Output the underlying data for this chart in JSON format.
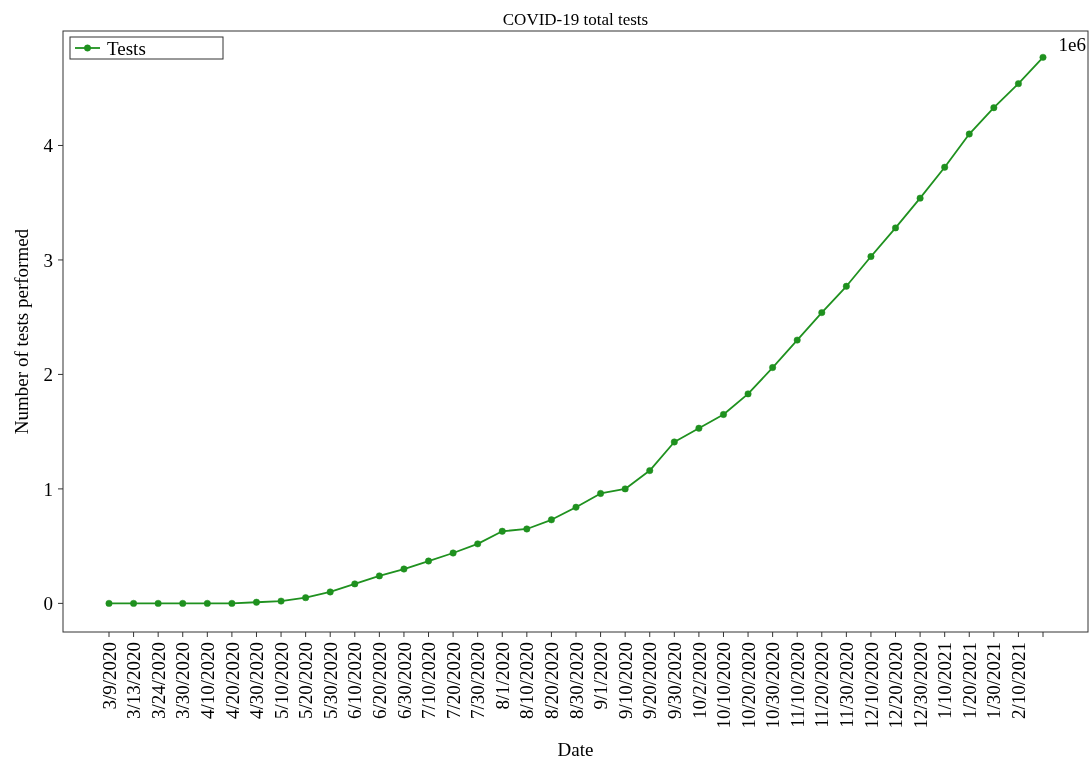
{
  "chart_data": {
    "type": "line",
    "title": "COVID-19 total tests",
    "xlabel": "Date",
    "ylabel": "Number of tests performed",
    "categories": [
      "3/9/2020",
      "3/13/2020",
      "3/24/2020",
      "3/30/2020",
      "4/10/2020",
      "4/20/2020",
      "4/30/2020",
      "5/10/2020",
      "5/20/2020",
      "5/30/2020",
      "6/10/2020",
      "6/20/2020",
      "6/30/2020",
      "7/10/2020",
      "7/20/2020",
      "7/30/2020",
      "8/1/2020",
      "8/10/2020",
      "8/20/2020",
      "8/30/2020",
      "9/1/2020",
      "9/10/2020",
      "9/20/2020",
      "9/30/2020",
      "10/2/2020",
      "10/10/2020",
      "10/20/2020",
      "10/30/2020",
      "11/10/2020",
      "11/20/2020",
      "11/30/2020",
      "12/10/2020",
      "12/20/2020",
      "12/30/2020",
      "1/10/2021",
      "1/20/2021",
      "1/30/2021",
      "2/10/2021",
      null
    ],
    "series": [
      {
        "name": "Tests",
        "color": "#1f911f",
        "values": [
          0,
          0,
          0,
          0,
          0,
          0,
          0.01,
          0.02,
          0.05,
          0.1,
          0.17,
          0.24,
          0.3,
          0.37,
          0.44,
          0.52,
          0.63,
          0.65,
          0.73,
          0.84,
          0.96,
          1.0,
          1.16,
          1.41,
          1.53,
          1.65,
          1.83,
          2.06,
          2.3,
          2.54,
          2.77,
          3.03,
          3.28,
          3.54,
          3.81,
          4.1,
          4.33,
          4.54,
          4.77
        ]
      }
    ],
    "ylim": [
      -0.25,
      5
    ],
    "yticks": [
      0,
      1,
      2,
      3,
      4
    ],
    "annotations": [
      "1e6"
    ],
    "legend": "top left",
    "marker": "circle",
    "line_style": "solid",
    "grid": false
  }
}
